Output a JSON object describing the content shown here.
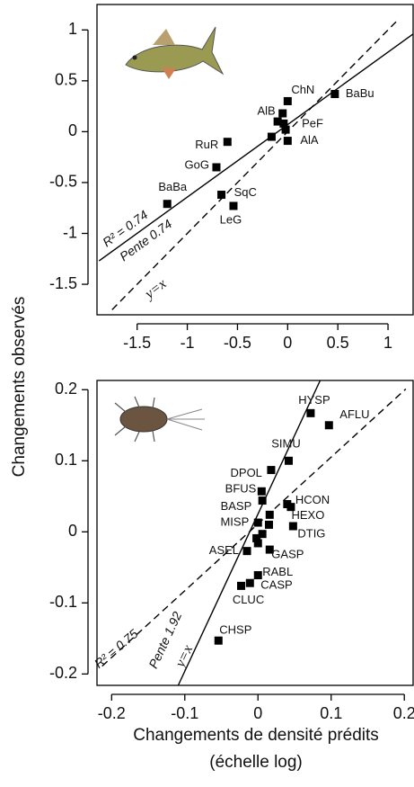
{
  "chart_data": [
    {
      "type": "scatter",
      "ylabel": "Changements observés",
      "xlim": [
        -1.9,
        1.25
      ],
      "ylim": [
        -1.8,
        1.25
      ],
      "xticks": [
        -1.5,
        -1,
        -0.5,
        0,
        0.5,
        1
      ],
      "yticks": [
        -1.5,
        -1,
        -0.5,
        0,
        0.5,
        1
      ],
      "x": [
        0.47,
        0,
        -0.05,
        -0.1,
        -0.04,
        -0.02,
        0,
        -0.16,
        -0.6,
        -0.71,
        -1.2,
        -0.66,
        -0.54
      ],
      "values": [
        0.37,
        0.3,
        0.18,
        0.1,
        0.08,
        0.02,
        -0.09,
        -0.05,
        -0.1,
        -0.35,
        -0.71,
        -0.62,
        -0.73
      ],
      "labels": [
        "BaBu",
        "ChN",
        "AlB",
        null,
        null,
        "PeF",
        "AlA",
        null,
        "RuR",
        "GoG",
        "BaBa",
        "SqC",
        "LeG"
      ],
      "color": "#000000",
      "lines": [
        {
          "style": "solid",
          "x": [
            -1.88,
            1.25
          ],
          "y": [
            -1.27,
            0.96
          ]
        },
        {
          "style": "dashed",
          "x": [
            -1.75,
            1.1
          ],
          "y": [
            -1.75,
            1.1
          ]
        }
      ],
      "annotations": [
        "R² = 0.74",
        "Pente 0.74",
        "y=x"
      ]
    },
    {
      "type": "scatter",
      "xlabel": [
        "Changements de densité prédits",
        "(échelle log)"
      ],
      "xlim": [
        -0.22,
        0.212
      ],
      "ylim": [
        -0.216,
        0.213
      ],
      "xticks": [
        -0.2,
        -0.1,
        0,
        0.1,
        0.2
      ],
      "yticks": [
        -0.2,
        -0.1,
        0,
        0.1,
        0.2
      ],
      "x": [
        0.072,
        0.097,
        0.042,
        0.018,
        0.005,
        0.006,
        0.016,
        0.04,
        0.045,
        0.015,
        0,
        0.048,
        0.006,
        -0.002,
        0,
        -0.015,
        0.016,
        0,
        -0.011,
        -0.023,
        -0.054
      ],
      "values": [
        0.167,
        0.15,
        0.1,
        0.087,
        0.057,
        0.044,
        0.024,
        0.039,
        0.035,
        0.01,
        0.013,
        0.008,
        -0.003,
        -0.009,
        -0.016,
        -0.027,
        -0.025,
        -0.061,
        -0.072,
        -0.076,
        -0.153
      ],
      "labels": [
        "HYSP",
        "AFLU",
        "SIMU",
        "DPOL",
        "BFUS",
        null,
        "BASP",
        "HCON",
        null,
        "HEXO",
        "MISP",
        "DTIG",
        null,
        null,
        null,
        "ASEL",
        "GASP",
        "RABL",
        "CASP",
        "CLUC",
        "CHSP"
      ],
      "color": "#000000",
      "lines": [
        {
          "style": "solid",
          "x": [
            -0.109,
            0.085
          ],
          "y": [
            -0.216,
            0.213
          ]
        },
        {
          "style": "dashed",
          "x": [
            -0.213,
            0.202
          ],
          "y": [
            -0.189,
            0.201
          ]
        }
      ],
      "annotations": [
        "R² = 0.75",
        "Pente 1.92",
        "y=x"
      ]
    }
  ]
}
